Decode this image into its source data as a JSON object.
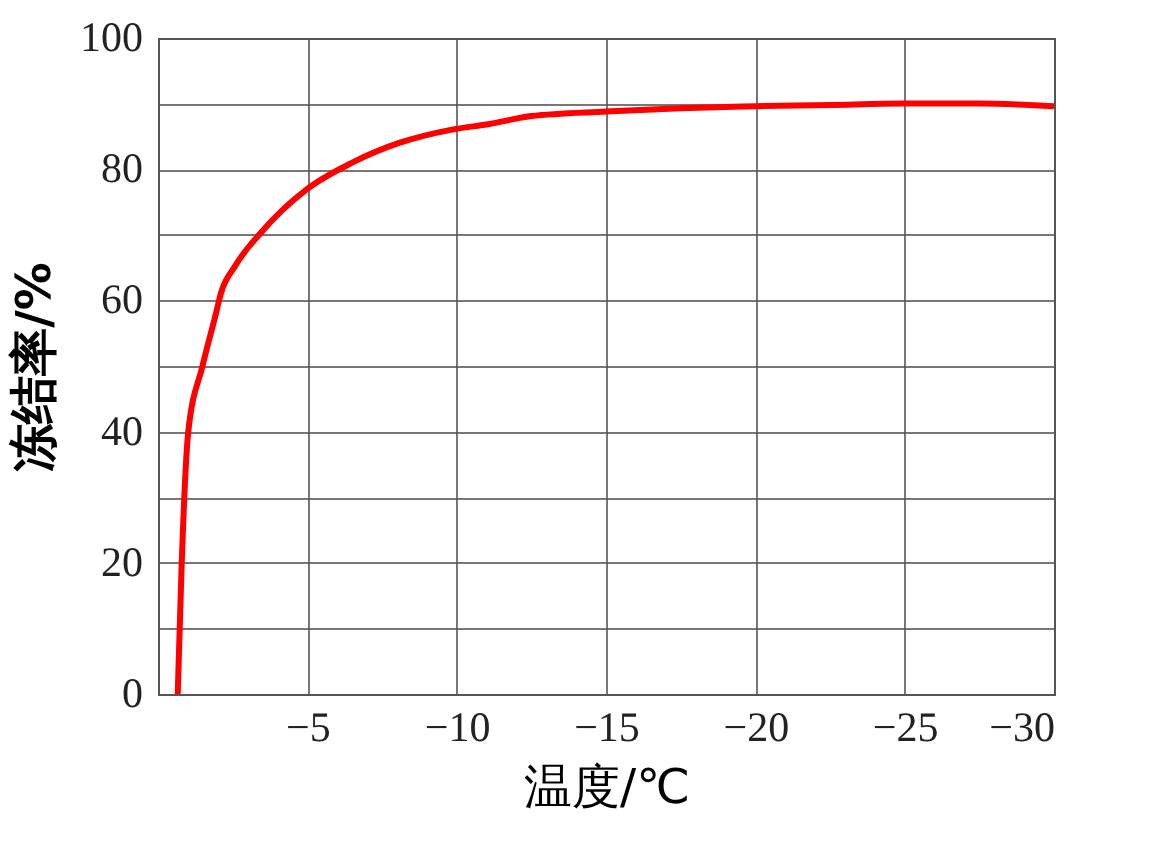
{
  "chart_data": {
    "type": "line",
    "xlabel": "温度/℃",
    "ylabel": "冻结率/%",
    "x": [
      -0.66,
      -0.79,
      -1.01,
      -1.49,
      -1.94,
      -2.1,
      -2.59,
      -3.46,
      -5,
      -6.5,
      -8.07,
      -9.8,
      -11.1,
      -12.5,
      -15,
      -17.5,
      -20,
      -22.5,
      -25,
      -27.5,
      -30
    ],
    "series": [
      {
        "color": "#ff0000",
        "values": [
          0,
          19.4,
          39.8,
          50,
          58,
          61,
          65.3,
          70.4,
          77,
          81,
          84,
          86,
          86.9,
          88.1,
          88.8,
          89.3,
          89.6,
          89.8,
          90,
          90,
          89.6
        ]
      }
    ],
    "xlim": [
      0,
      -30
    ],
    "xticks": [
      -5,
      -10,
      -15,
      -20,
      -25,
      -30
    ],
    "ylim": [
      0,
      100
    ],
    "yticks": [
      0,
      {
        "value": 10,
        "label": null
      },
      20,
      {
        "value": 30,
        "label": null
      },
      40,
      {
        "value": 50,
        "label": null
      },
      60,
      {
        "value": 70,
        "label": null
      },
      80,
      {
        "value": 90,
        "label": null
      },
      100
    ],
    "grid": true,
    "marker": "none",
    "line_style": "solid"
  }
}
